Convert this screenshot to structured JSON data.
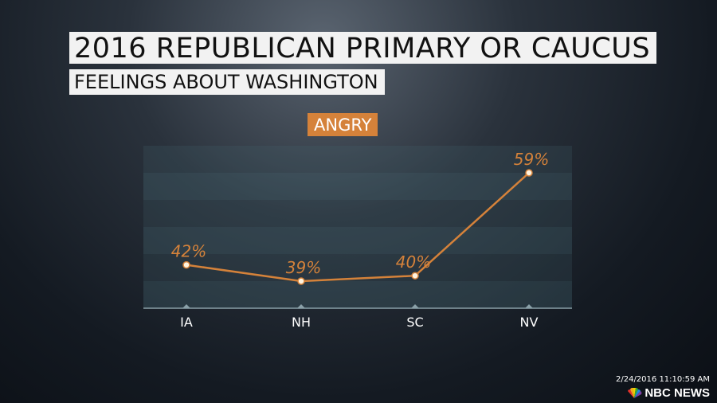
{
  "header": {
    "title": "2016 REPUBLICAN PRIMARY OR CAUCUS",
    "subtitle": "FEELINGS ABOUT WASHINGTON"
  },
  "footer": {
    "timestamp": "2/24/2016 11:10:59 AM",
    "network": "NBC NEWS"
  },
  "colors": {
    "accent": "#d5823a",
    "point": "#fff4e0"
  },
  "chart_data": {
    "type": "line",
    "title": "ANGRY",
    "categories": [
      "IA",
      "NH",
      "SC",
      "NV"
    ],
    "series": [
      {
        "name": "Angry",
        "values": [
          42,
          39,
          40,
          59
        ]
      }
    ],
    "data_labels": [
      "42%",
      "39%",
      "40%",
      "59%"
    ],
    "ylim": [
      34,
      64
    ],
    "xlabel": "",
    "ylabel": "",
    "grid": true
  }
}
